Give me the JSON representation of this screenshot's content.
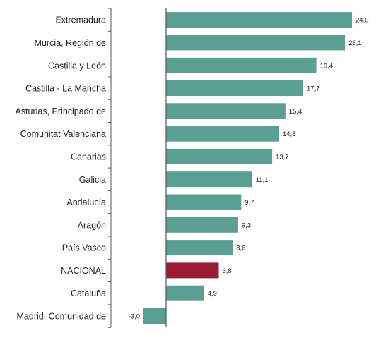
{
  "chart_data": {
    "type": "bar",
    "orientation": "horizontal",
    "categories": [
      "Extremadura",
      "Murcia, Región de",
      "Castilla y León",
      "Castilla - La Mancha",
      "Asturias, Principado de",
      "Comunitat Valenciana",
      "Canarias",
      "Galicia",
      "Andalucía",
      "Aragón",
      "País Vasco",
      "NACIONAL",
      "Cataluña",
      "Madrid, Comunidad de"
    ],
    "values": [
      24.0,
      23.1,
      19.4,
      17.7,
      15.4,
      14.6,
      13.7,
      11.1,
      9.7,
      9.3,
      8.6,
      6.8,
      4.9,
      -3.0
    ],
    "value_labels": [
      "24,0",
      "23,1",
      "19,4",
      "17,7",
      "15,4",
      "14,6",
      "13,7",
      "11,1",
      "9,7",
      "9,3",
      "8,6",
      "6,8",
      "4,9",
      "-3,0"
    ],
    "highlight_category": "NACIONAL",
    "colors": {
      "default": "#5a9e94",
      "highlight": "#9b1b35",
      "axis": "#555555"
    },
    "title": "",
    "xlabel": "",
    "ylabel": "",
    "xlim": [
      -3.5,
      24.5
    ],
    "grid": false,
    "legend": "none"
  }
}
